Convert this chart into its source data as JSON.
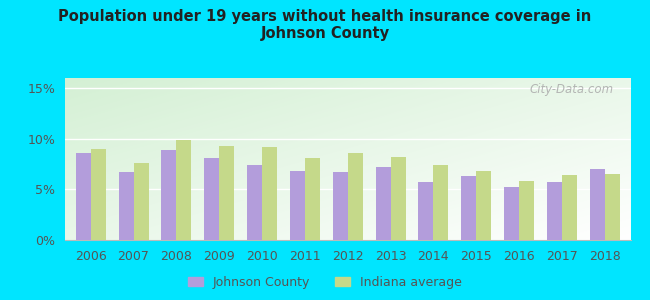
{
  "title": "Population under 19 years without health insurance coverage in\nJohnson County",
  "years": [
    2006,
    2007,
    2008,
    2009,
    2010,
    2011,
    2012,
    2013,
    2014,
    2015,
    2016,
    2017,
    2018
  ],
  "johnson_county": [
    8.6,
    6.7,
    8.9,
    8.1,
    7.4,
    6.8,
    6.7,
    7.2,
    5.7,
    6.3,
    5.2,
    5.7,
    7.0
  ],
  "indiana_avg": [
    9.0,
    7.6,
    9.9,
    9.3,
    9.2,
    8.1,
    8.6,
    8.2,
    7.4,
    6.8,
    5.8,
    6.4,
    6.5
  ],
  "bar_color_johnson": "#b39ddb",
  "bar_color_indiana": "#c5d98a",
  "background_outer": "#00e5ff",
  "background_plot_topleft": "#d4f0d4",
  "background_plot_bottomright": "#ffffff",
  "yticks": [
    0,
    5,
    10,
    15
  ],
  "ytick_labels": [
    "0%",
    "5%",
    "10%",
    "15%"
  ],
  "ylim": [
    0,
    16
  ],
  "bar_width": 0.35,
  "legend_johnson": "Johnson County",
  "legend_indiana": "Indiana average",
  "watermark": "City-Data.com"
}
